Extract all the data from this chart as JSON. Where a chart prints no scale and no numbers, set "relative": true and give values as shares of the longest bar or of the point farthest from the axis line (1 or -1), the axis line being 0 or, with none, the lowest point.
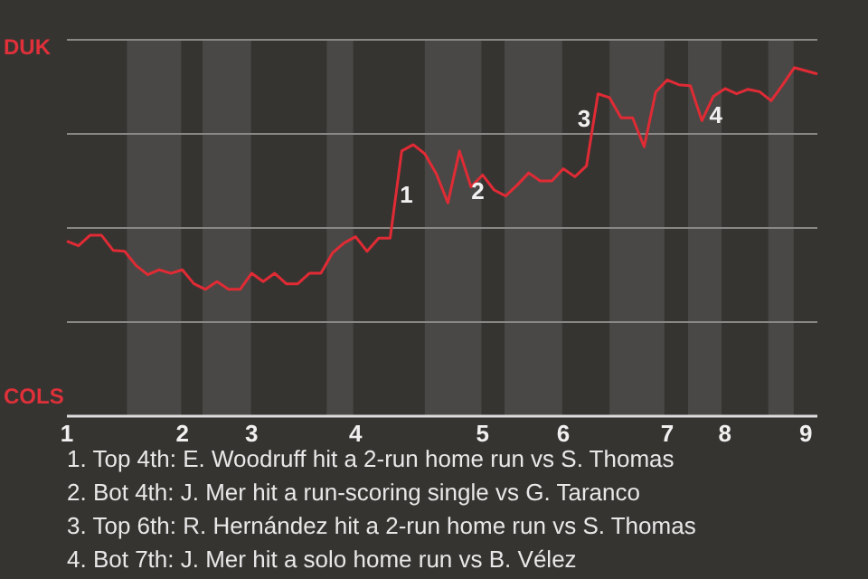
{
  "chart_data": {
    "type": "line",
    "relative": true,
    "categories": [
      "1",
      null,
      null,
      null,
      null,
      null,
      null,
      null,
      null,
      null,
      "2",
      null,
      null,
      null,
      null,
      null,
      "3",
      null,
      null,
      null,
      null,
      null,
      null,
      null,
      null,
      "4",
      null,
      null,
      null,
      null,
      null,
      null,
      null,
      null,
      null,
      null,
      "5",
      null,
      null,
      null,
      null,
      null,
      null,
      "6",
      null,
      null,
      null,
      null,
      null,
      null,
      null,
      null,
      "7",
      null,
      null,
      null,
      null,
      "8",
      null,
      null,
      null,
      null,
      null,
      null,
      "9",
      null
    ],
    "series": [
      {
        "color": "#e02b35",
        "values": [
          0.502,
          0.489,
          0.519,
          0.519,
          0.476,
          0.473,
          0.432,
          0.406,
          0.42,
          0.41,
          0.42,
          0.38,
          0.364,
          0.386,
          0.364,
          0.364,
          0.41,
          0.386,
          0.41,
          0.38,
          0.38,
          0.41,
          0.41,
          0.468,
          0.497,
          0.515,
          0.473,
          0.511,
          0.511,
          0.761,
          0.779,
          0.753,
          0.695,
          0.612,
          0.761,
          0.658,
          0.692,
          0.649,
          0.632,
          0.663,
          0.698,
          0.675,
          0.675,
          0.71,
          0.687,
          0.718,
          0.925,
          0.914,
          0.856,
          0.856,
          0.773,
          0.93,
          0.965,
          0.951,
          0.948,
          0.848,
          0.918,
          0.94,
          0.925,
          0.938,
          0.931,
          0.905,
          0.951,
          1,
          0.991,
          0.982
        ]
      }
    ],
    "grid": "y",
    "marker": "none",
    "line_style": "solid",
    "annotations": [
      "1",
      "2",
      "3",
      "4",
      "DUK",
      "COLS",
      "1. Top 4th: E. Woodruff hit a 2-run home run vs S. Thomas",
      "2. Bot 4th: J. Mer hit a run-scoring single vs G. Taranco",
      "3. Top 6th: R. Hernández hit a 2-run home run vs S. Thomas",
      "4. Bot 7th: J. Mer hit a solo home run vs B. Vélez"
    ]
  }
}
